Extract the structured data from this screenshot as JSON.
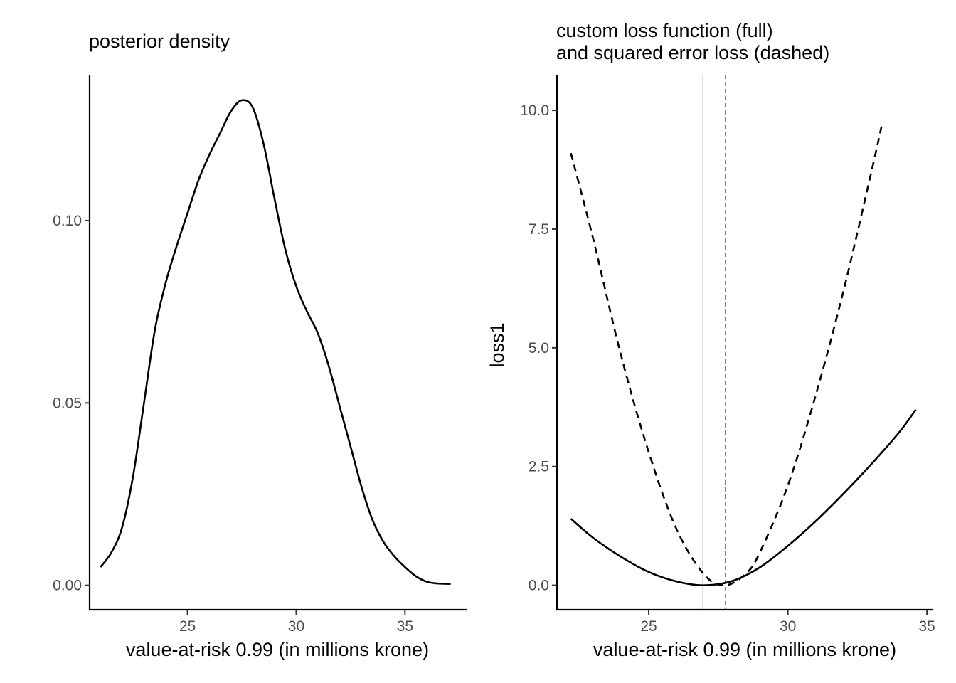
{
  "colors": {
    "line": "#000000",
    "axis": "#000000",
    "tick_label": "#4d4d4d",
    "vline": "#808080"
  },
  "chart_data": [
    {
      "type": "line",
      "title": "posterior density",
      "xlabel": "value-at-risk 0.99 (in millions krone)",
      "ylabel": "",
      "xlim": [
        20.5,
        37.8
      ],
      "ylim": [
        -0.0065,
        0.14
      ],
      "xticks": [
        25,
        30,
        35
      ],
      "xtick_labels": [
        "25",
        "30",
        "35"
      ],
      "yticks": [
        0,
        0.05,
        0.1
      ],
      "ytick_labels": [
        "0.00",
        "0.05",
        "0.10"
      ],
      "grid": false,
      "series": [
        {
          "linestyle": "solid",
          "x": [
            21.0,
            21.5,
            22.0,
            22.5,
            23.0,
            23.5,
            24.0,
            24.5,
            25.0,
            25.5,
            26.0,
            26.5,
            27.0,
            27.5,
            28.0,
            28.5,
            29.0,
            29.5,
            30.0,
            30.5,
            31.0,
            31.5,
            32.0,
            32.5,
            33.0,
            33.5,
            34.0,
            34.5,
            35.0,
            35.5,
            36.0,
            36.5,
            37.0,
            37.1
          ],
          "y": [
            0.005,
            0.009,
            0.016,
            0.03,
            0.05,
            0.07,
            0.083,
            0.093,
            0.102,
            0.111,
            0.118,
            0.124,
            0.13,
            0.133,
            0.131,
            0.121,
            0.106,
            0.092,
            0.082,
            0.075,
            0.069,
            0.06,
            0.049,
            0.038,
            0.027,
            0.018,
            0.012,
            0.008,
            0.005,
            0.0025,
            0.001,
            0.0005,
            0.0004,
            0.0004
          ]
        }
      ]
    },
    {
      "type": "line",
      "title": "custom loss function (full)\nand squared error loss (dashed)",
      "title_lines": [
        "custom loss function (full)",
        "and squared error loss (dashed)"
      ],
      "xlabel": "value-at-risk 0.99 (in millions krone)",
      "ylabel": "loss1",
      "xlim": [
        21.7,
        35.2
      ],
      "ylim": [
        -0.5,
        10.75
      ],
      "xticks": [
        25,
        30,
        35
      ],
      "xtick_labels": [
        "25",
        "30",
        "35"
      ],
      "yticks": [
        0,
        2.5,
        5,
        7.5,
        10
      ],
      "ytick_labels": [
        "0.0",
        "2.5",
        "5.0",
        "7.5",
        "10.0"
      ],
      "grid": false,
      "vlines": [
        {
          "x": 26.95,
          "linestyle": "solid"
        },
        {
          "x": 27.75,
          "linestyle": "dashed"
        }
      ],
      "series": [
        {
          "linestyle": "solid",
          "x": [
            22.2,
            23.0,
            24.0,
            25.0,
            26.0,
            26.95,
            28.0,
            29.0,
            30.0,
            31.0,
            32.0,
            33.0,
            34.0,
            34.6
          ],
          "y": [
            1.4,
            1.0,
            0.6,
            0.28,
            0.08,
            0.0,
            0.09,
            0.38,
            0.83,
            1.35,
            1.93,
            2.55,
            3.22,
            3.7
          ]
        },
        {
          "linestyle": "dashed",
          "x": [
            22.2,
            23.0,
            24.0,
            25.0,
            26.0,
            27.0,
            27.75,
            28.5,
            29.0,
            30.0,
            31.0,
            32.0,
            33.0,
            33.4
          ],
          "y": [
            9.1,
            7.3,
            4.85,
            2.8,
            1.18,
            0.22,
            0.0,
            0.25,
            0.7,
            2.1,
            4.0,
            6.2,
            8.7,
            9.75
          ]
        }
      ]
    }
  ]
}
